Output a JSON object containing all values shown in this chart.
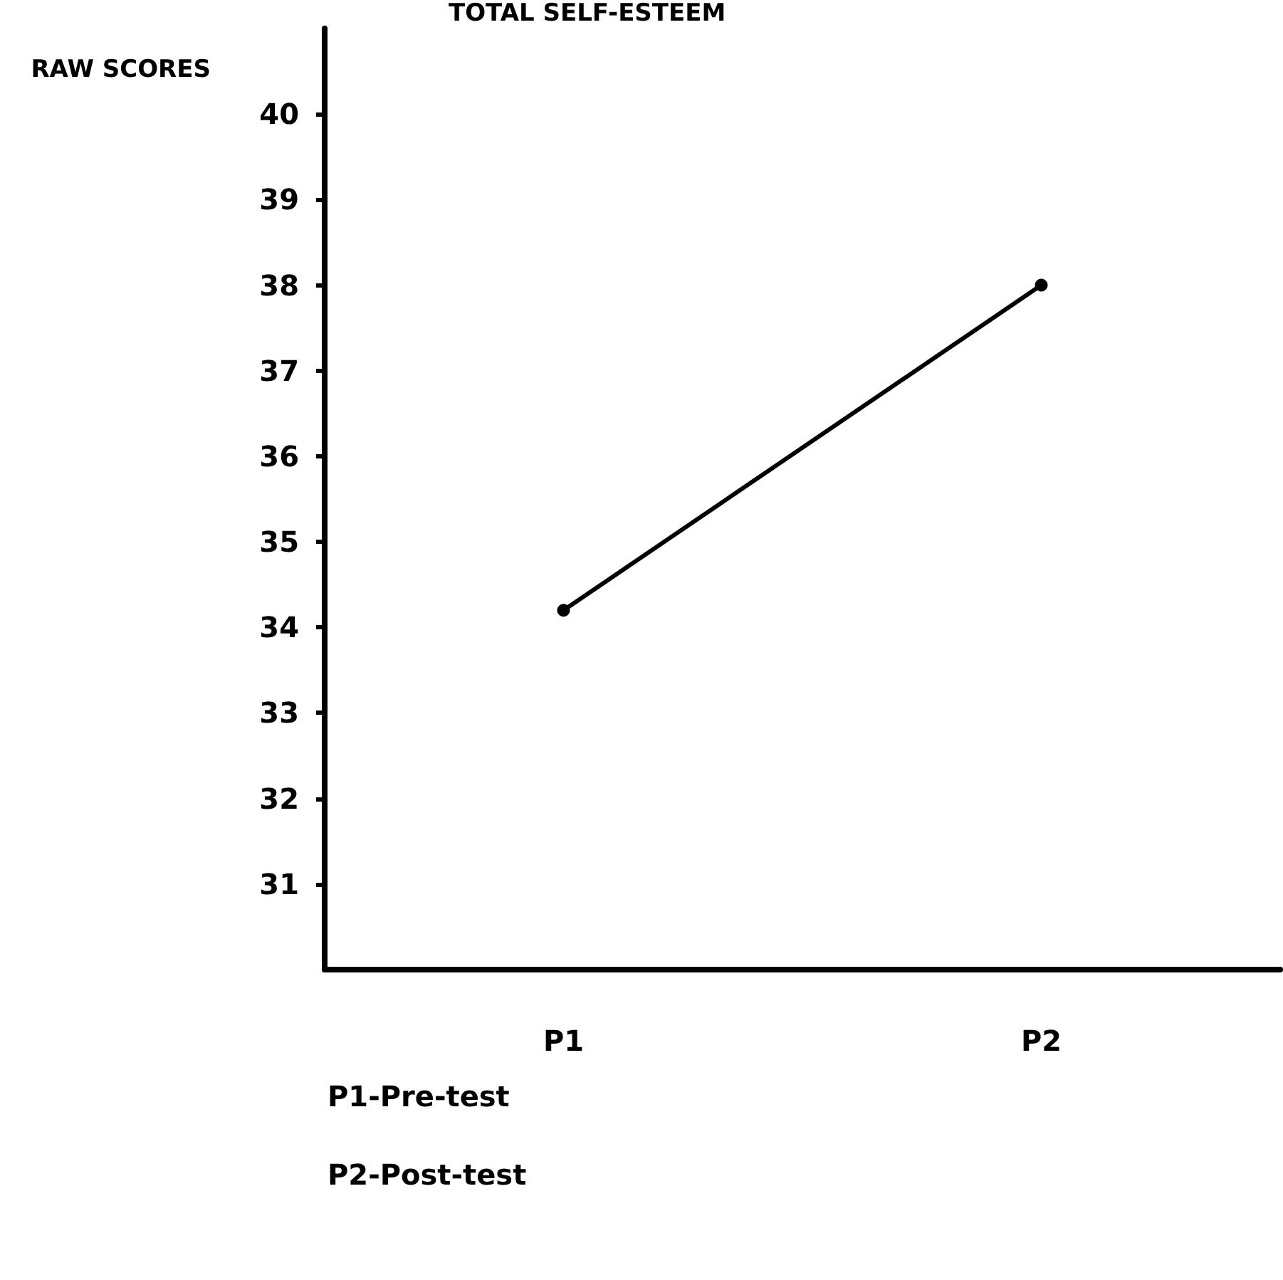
{
  "chart_data": {
    "type": "line",
    "title": "TOTAL SELF-ESTEEM",
    "ylabel": "RAW SCORES",
    "categories": [
      "P1",
      "P2"
    ],
    "series": [
      {
        "color": "#000000",
        "values": [
          34.2,
          38.0
        ]
      }
    ],
    "ylim": [
      30,
      41
    ],
    "yticks": [
      31,
      32,
      33,
      34,
      35,
      36,
      37,
      38,
      39,
      40
    ],
    "grid": false,
    "marker": "circle",
    "line_style": "solid",
    "annotations": [
      "P1-Pre-test",
      "P2-Post-test"
    ]
  }
}
